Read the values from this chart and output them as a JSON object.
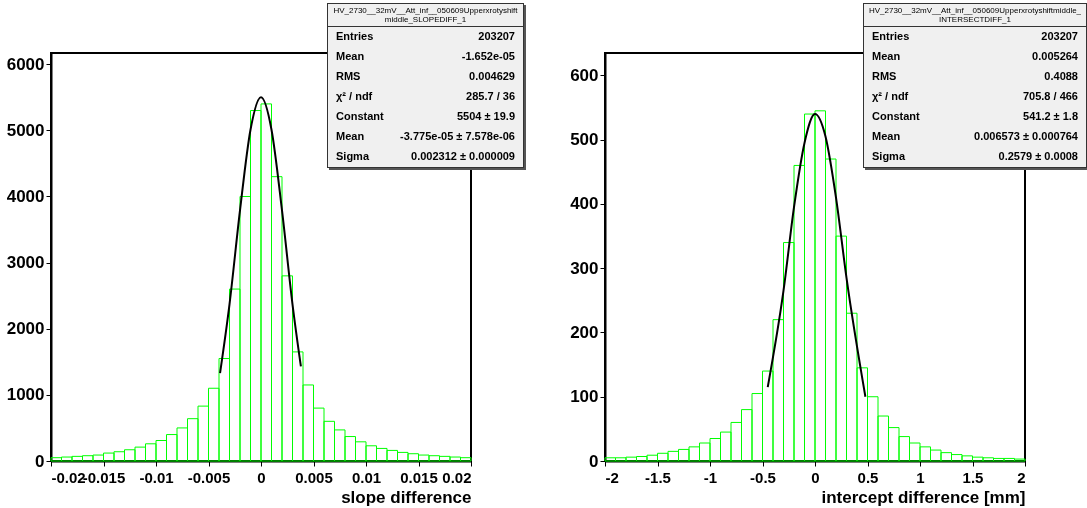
{
  "chart_data": [
    {
      "type": "histogram",
      "xlabel": "slope difference",
      "xlim": [
        -0.02,
        0.02
      ],
      "xticks": [
        -0.02,
        -0.015,
        -0.01,
        -0.005,
        0,
        0.005,
        0.01,
        0.015,
        0.02
      ],
      "ylim": [
        0,
        6170
      ],
      "yticks": [
        0,
        1000,
        2000,
        3000,
        4000,
        5000,
        6000
      ],
      "series": [
        {
          "type": "histogram",
          "color": "#00ff00",
          "bins": [
            -0.02,
            -0.019,
            -0.018,
            -0.017,
            -0.016,
            -0.015,
            -0.014,
            -0.013,
            -0.012,
            -0.011,
            -0.01,
            -0.009,
            -0.008,
            -0.007,
            -0.006,
            -0.005,
            -0.004,
            -0.003,
            -0.002,
            -0.001,
            0,
            0.001,
            0.002,
            0.003,
            0.004,
            0.005,
            0.006,
            0.007,
            0.008,
            0.009,
            0.01,
            0.011,
            0.012,
            0.013,
            0.014,
            0.015,
            0.016,
            0.017,
            0.018,
            0.019,
            0.02
          ],
          "values": [
            50,
            60,
            70,
            80,
            90,
            120,
            140,
            170,
            210,
            260,
            310,
            400,
            500,
            640,
            830,
            1100,
            1550,
            2600,
            4000,
            5300,
            5400,
            4300,
            2800,
            1650,
            1150,
            800,
            600,
            470,
            370,
            290,
            230,
            190,
            160,
            130,
            110,
            90,
            80,
            70,
            60,
            50
          ]
        },
        {
          "type": "line",
          "color": "#000000",
          "x": [
            -0.0039,
            -0.003,
            -0.002,
            -0.001,
            0,
            0.001,
            0.002,
            0.003,
            0.0038
          ],
          "values": [
            1330,
            2370,
            3790,
            5010,
            5500,
            5010,
            3790,
            2370,
            1430
          ]
        }
      ],
      "annotations": [
        "HV_2730__32mV__Att_inf__050609Upperxrotyshiftmiddle_SLOPEDIFF_1",
        "Entries  203207",
        "Mean  -1.652e-05",
        "RMS  0.004629",
        "χ² / ndf  285.7 / 36",
        "Constant  5504 ± 19.9",
        "Mean  -3.775e-05 ± 7.578e-06",
        "Sigma  0.002312 ± 0.000009"
      ]
    },
    {
      "type": "histogram",
      "xlabel": "intercept difference  [mm]",
      "xlim": [
        -2,
        2
      ],
      "xticks": [
        -2,
        -1.5,
        -1,
        -0.5,
        0,
        0.5,
        1,
        1.5,
        2
      ],
      "ylim": [
        0,
        635
      ],
      "yticks": [
        0,
        100,
        200,
        300,
        400,
        500,
        600
      ],
      "series": [
        {
          "type": "histogram",
          "color": "#00ff00",
          "bins": [
            -2,
            -1.9,
            -1.8,
            -1.7,
            -1.6,
            -1.5,
            -1.4,
            -1.3,
            -1.2,
            -1.1,
            -1,
            -0.9,
            -0.8,
            -0.7,
            -0.6,
            -0.5,
            -0.4,
            -0.3,
            -0.2,
            -0.1,
            0,
            0.1,
            0.2,
            0.3,
            0.4,
            0.5,
            0.6,
            0.7,
            0.8,
            0.9,
            1,
            1.1,
            1.2,
            1.3,
            1.4,
            1.5,
            1.6,
            1.7,
            1.8,
            1.9,
            2
          ],
          "values": [
            5,
            5,
            6,
            7,
            9,
            12,
            15,
            18,
            22,
            28,
            35,
            45,
            60,
            80,
            105,
            140,
            220,
            340,
            460,
            540,
            545,
            470,
            350,
            230,
            145,
            100,
            70,
            52,
            38,
            28,
            22,
            17,
            13,
            10,
            8,
            6,
            5,
            4,
            4,
            3
          ]
        },
        {
          "type": "line",
          "color": "#000000",
          "x": [
            -0.45,
            -0.3,
            -0.2,
            -0.1,
            0,
            0.1,
            0.2,
            0.3,
            0.48
          ],
          "values": [
            115,
            265,
            395,
            495,
            540,
            505,
            410,
            285,
            100
          ]
        }
      ],
      "annotations": [
        "HV_2730__32mV__Att_inf__050609Upperxrotyshiftmiddle_INTERSECTDIFF_1",
        "Entries  203207",
        "Mean  0.005264",
        "RMS  0.4088",
        "χ² / ndf  705.8 / 466",
        "Constant  541.2 ± 1.8",
        "Mean  0.006573 ± 0.000764",
        "Sigma  0.2579 ± 0.0008"
      ]
    }
  ]
}
